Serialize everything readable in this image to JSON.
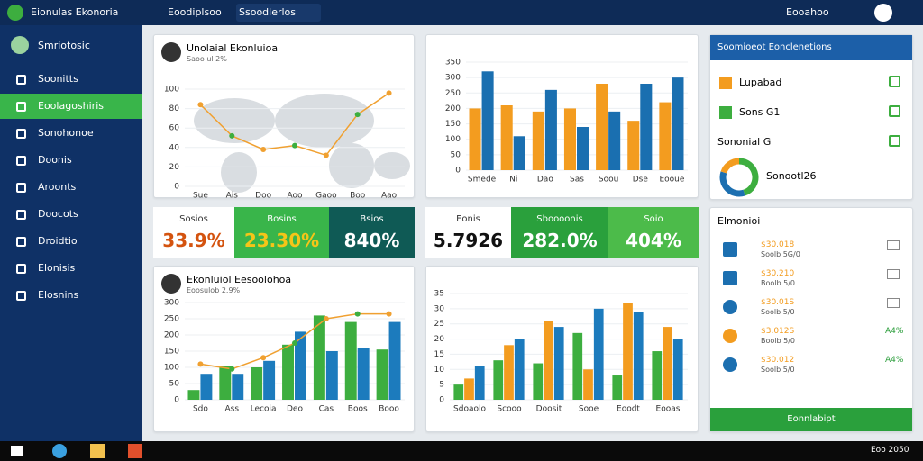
{
  "topbar": {
    "app": "Eionulas Ekonoria",
    "search": "Eoodiplsoo",
    "filter": "Ssoodlerlos",
    "user": "Eooahoo"
  },
  "sidebar": {
    "profile": "Smriotosic",
    "items": [
      "Soonitts",
      "Eoolagoshiris",
      "Sonohonoe",
      "Doonis",
      "Aroonts",
      "Doocots",
      "Droidtio",
      "Elonisis",
      "Elosnins"
    ],
    "active": 1
  },
  "charts": [
    {
      "type": "line",
      "title": "Unolaial Ekonluioa",
      "subtitle": "Saoo ul 2%",
      "categories": [
        "Sue",
        "Ais",
        "Doo",
        "Aoo",
        "Gaoo",
        "Boo",
        "Aao"
      ],
      "ylim": [
        0,
        100
      ],
      "yticks": [
        0,
        20,
        40,
        60,
        80,
        100
      ],
      "series": [
        {
          "color": "#f0a030",
          "values": [
            84,
            52,
            38,
            42,
            32,
            74,
            96
          ]
        }
      ]
    },
    {
      "type": "bar",
      "categories": [
        "Smede",
        "Ni",
        "Dao",
        "Sas",
        "Soou",
        "Dse",
        "Eooue"
      ],
      "ylim": [
        0,
        350
      ],
      "yticks": [
        0,
        50,
        100,
        150,
        200,
        250,
        300,
        350
      ],
      "series": [
        {
          "color": "#f39c1f",
          "values": [
            200,
            210,
            190,
            200,
            280,
            160,
            220
          ]
        },
        {
          "color": "#1a6fb0",
          "values": [
            320,
            110,
            260,
            140,
            190,
            280,
            300
          ]
        }
      ]
    },
    {
      "type": "bar",
      "title": "Ekonluiol Eesoolohoa",
      "subtitle": "Eoosulob 2.9%",
      "categories": [
        "Sdo",
        "Ass",
        "Lecoia",
        "Deo",
        "Cas",
        "Boos",
        "Booo"
      ],
      "ylim": [
        0,
        300
      ],
      "yticks": [
        0,
        50,
        100,
        150,
        200,
        250,
        300
      ],
      "series": [
        {
          "color": "#3dae3f",
          "values": [
            30,
            105,
            100,
            170,
            260,
            240,
            155
          ]
        },
        {
          "color": "#1c7bbd",
          "values": [
            80,
            80,
            120,
            210,
            150,
            160,
            240
          ]
        },
        {
          "type": "line",
          "color": "#f0a030",
          "values": [
            110,
            95,
            130,
            175,
            250,
            265,
            265
          ]
        }
      ]
    },
    {
      "type": "bar",
      "categories": [
        "Sdoaolo",
        "Scooo",
        "Doosit",
        "Sooe",
        "Eoodt",
        "Eooas"
      ],
      "ylim": [
        0,
        35
      ],
      "yticks": [
        0,
        5,
        10,
        15,
        20,
        25,
        30,
        35
      ],
      "series": [
        {
          "color": "#3dae3f",
          "values": [
            5,
            13,
            12,
            22,
            8,
            16
          ]
        },
        {
          "color": "#f39c1f",
          "values": [
            7,
            18,
            26,
            10,
            32,
            24
          ]
        },
        {
          "color": "#1c7bbd",
          "values": [
            11,
            20,
            24,
            30,
            29,
            20
          ]
        }
      ]
    },
    {
      "type": "pie",
      "label": "Sonootl26",
      "values": [
        45,
        35,
        20
      ],
      "colors": [
        "#3dae3f",
        "#1c6fb0",
        "#f39c1f"
      ]
    }
  ],
  "kpis": [
    {
      "label": "Sosios",
      "value": "33.9%"
    },
    {
      "label": "Bosins",
      "value": "23.30%"
    },
    {
      "label": "Bsios",
      "value": "840%"
    },
    {
      "label": "Eonis",
      "value": "5.7926"
    },
    {
      "label": "Sboooonis",
      "value": "282.0%"
    },
    {
      "label": "Soio",
      "value": "404%"
    }
  ],
  "panel": {
    "title": "Soomioeot Eonclenetions",
    "items": [
      "Lupabad",
      "Sons G1",
      "Sononial G"
    ],
    "list_title": "Elmonioi",
    "list": [
      {
        "label": "$30.018",
        "sub": "Soolb 5G/0"
      },
      {
        "label": "$30.210",
        "sub": "Boolb 5/0"
      },
      {
        "label": "$30.01S",
        "sub": "Soolb 5/0"
      },
      {
        "label": "$3.012S",
        "sub": "Boolb 5/0",
        "tag": "A4%"
      },
      {
        "label": "$30.012",
        "sub": "Soolb 5/0",
        "tag": "A4%"
      }
    ],
    "button": "Eonnlabipt"
  },
  "taskbar": {
    "time": "Eoo 2050"
  }
}
